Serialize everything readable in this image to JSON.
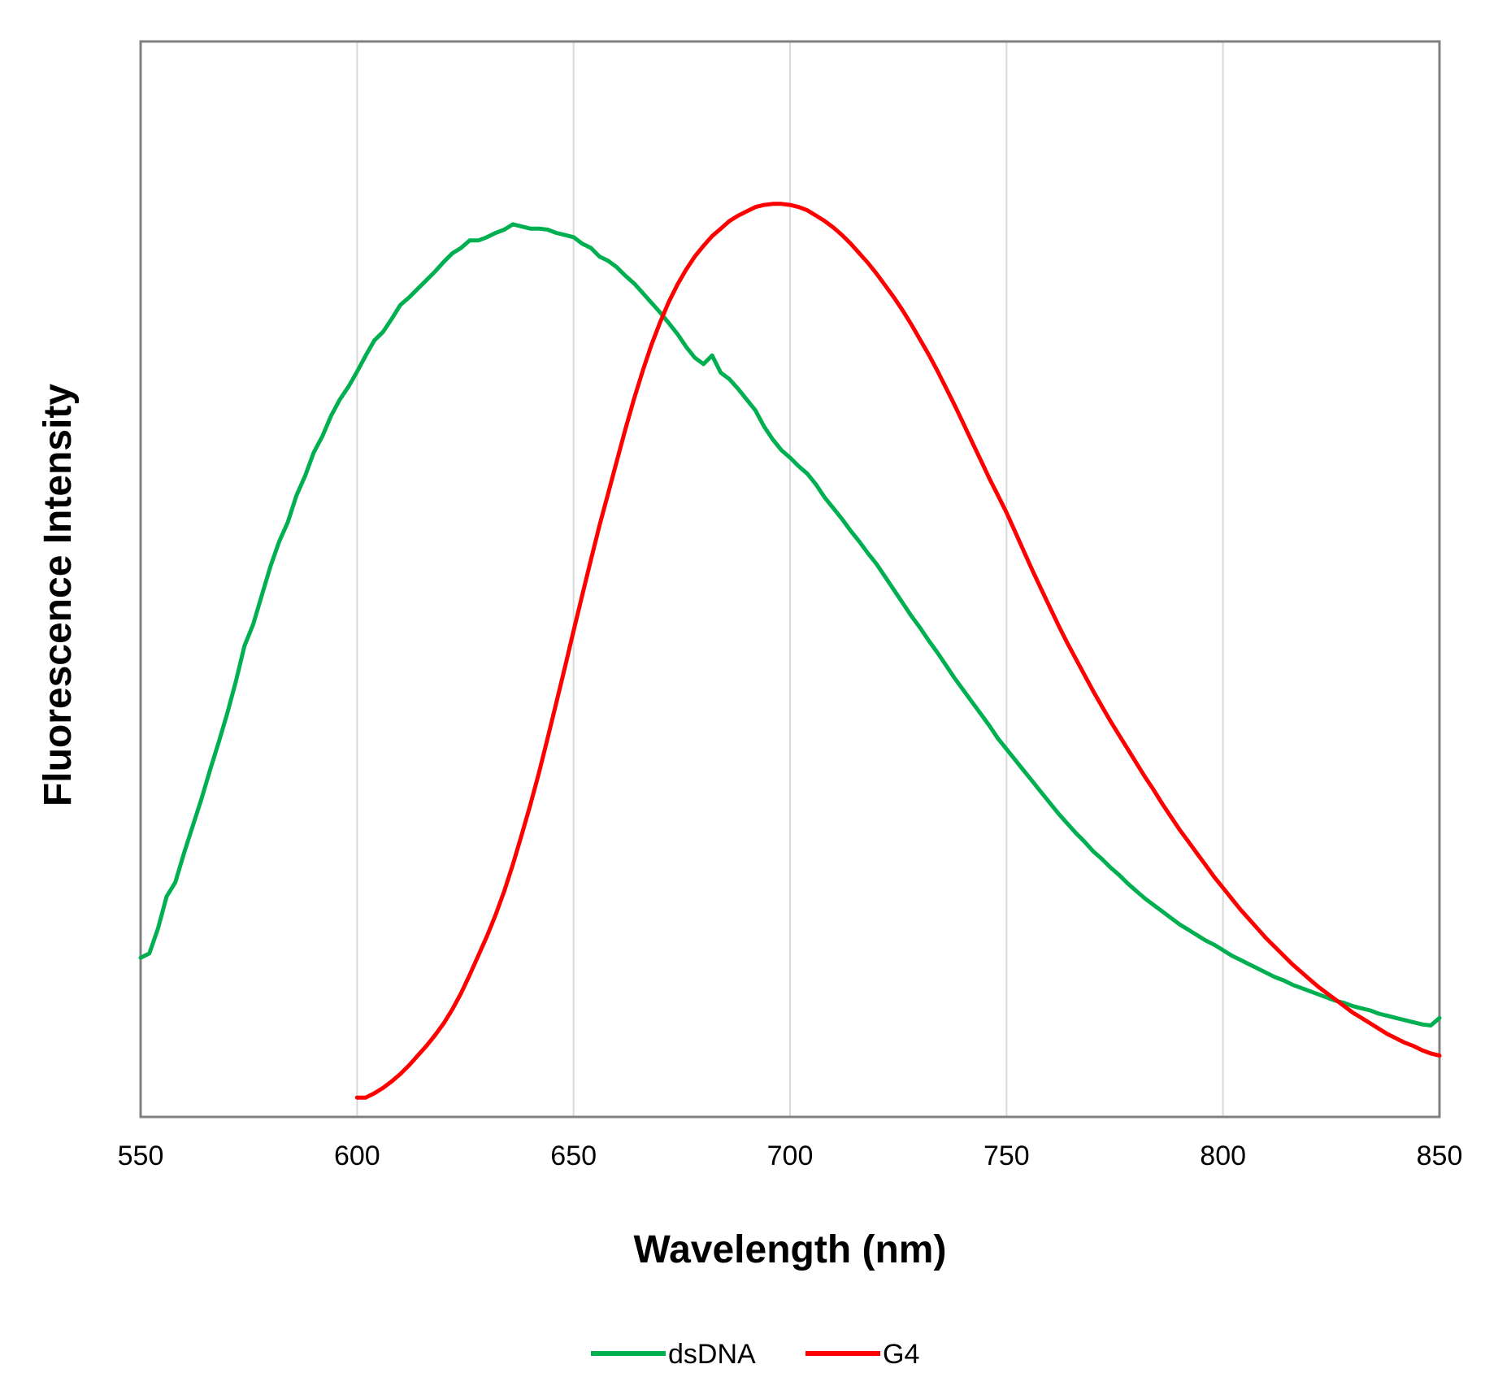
{
  "chart_data": {
    "type": "line",
    "title": "",
    "xlabel": "Wavelength (nm)",
    "ylabel": "Fluorescence Intensity",
    "xlim": [
      550,
      850
    ],
    "ylim": [
      0,
      1
    ],
    "x_ticks": [
      "550",
      "600",
      "650",
      "700",
      "750",
      "800",
      "850"
    ],
    "y_ticks_shown": false,
    "grid": "vertical",
    "legend_position": "bottom-center",
    "series": [
      {
        "name": "dsDNA",
        "color": "#00b050",
        "points": [
          [
            550,
            0.148
          ],
          [
            552,
            0.152
          ],
          [
            554,
            0.175
          ],
          [
            556,
            0.205
          ],
          [
            558,
            0.218
          ],
          [
            560,
            0.245
          ],
          [
            562,
            0.27
          ],
          [
            564,
            0.295
          ],
          [
            566,
            0.322
          ],
          [
            568,
            0.348
          ],
          [
            570,
            0.375
          ],
          [
            572,
            0.405
          ],
          [
            574,
            0.438
          ],
          [
            576,
            0.458
          ],
          [
            578,
            0.485
          ],
          [
            580,
            0.512
          ],
          [
            582,
            0.535
          ],
          [
            584,
            0.553
          ],
          [
            586,
            0.578
          ],
          [
            588,
            0.596
          ],
          [
            590,
            0.618
          ],
          [
            592,
            0.633
          ],
          [
            594,
            0.652
          ],
          [
            596,
            0.667
          ],
          [
            598,
            0.679
          ],
          [
            600,
            0.693
          ],
          [
            602,
            0.708
          ],
          [
            604,
            0.722
          ],
          [
            606,
            0.73
          ],
          [
            608,
            0.742
          ],
          [
            610,
            0.755
          ],
          [
            612,
            0.762
          ],
          [
            614,
            0.77
          ],
          [
            616,
            0.778
          ],
          [
            618,
            0.786
          ],
          [
            620,
            0.795
          ],
          [
            622,
            0.803
          ],
          [
            624,
            0.808
          ],
          [
            626,
            0.815
          ],
          [
            628,
            0.815
          ],
          [
            630,
            0.818
          ],
          [
            632,
            0.822
          ],
          [
            634,
            0.825
          ],
          [
            636,
            0.83
          ],
          [
            638,
            0.828
          ],
          [
            640,
            0.826
          ],
          [
            642,
            0.826
          ],
          [
            644,
            0.825
          ],
          [
            646,
            0.822
          ],
          [
            648,
            0.82
          ],
          [
            650,
            0.818
          ],
          [
            652,
            0.812
          ],
          [
            654,
            0.808
          ],
          [
            656,
            0.8
          ],
          [
            658,
            0.796
          ],
          [
            660,
            0.79
          ],
          [
            662,
            0.782
          ],
          [
            664,
            0.775
          ],
          [
            666,
            0.766
          ],
          [
            668,
            0.757
          ],
          [
            670,
            0.748
          ],
          [
            672,
            0.738
          ],
          [
            674,
            0.728
          ],
          [
            676,
            0.716
          ],
          [
            678,
            0.706
          ],
          [
            680,
            0.7
          ],
          [
            682,
            0.708
          ],
          [
            684,
            0.692
          ],
          [
            686,
            0.686
          ],
          [
            688,
            0.677
          ],
          [
            690,
            0.667
          ],
          [
            692,
            0.657
          ],
          [
            694,
            0.642
          ],
          [
            696,
            0.63
          ],
          [
            698,
            0.62
          ],
          [
            700,
            0.613
          ],
          [
            702,
            0.605
          ],
          [
            704,
            0.598
          ],
          [
            706,
            0.588
          ],
          [
            708,
            0.576
          ],
          [
            710,
            0.566
          ],
          [
            712,
            0.556
          ],
          [
            714,
            0.545
          ],
          [
            716,
            0.535
          ],
          [
            718,
            0.524
          ],
          [
            720,
            0.514
          ],
          [
            722,
            0.502
          ],
          [
            724,
            0.49
          ],
          [
            726,
            0.478
          ],
          [
            728,
            0.466
          ],
          [
            730,
            0.455
          ],
          [
            732,
            0.443
          ],
          [
            734,
            0.432
          ],
          [
            736,
            0.42
          ],
          [
            738,
            0.408
          ],
          [
            740,
            0.397
          ],
          [
            742,
            0.386
          ],
          [
            744,
            0.375
          ],
          [
            746,
            0.364
          ],
          [
            748,
            0.352
          ],
          [
            750,
            0.342
          ],
          [
            752,
            0.332
          ],
          [
            754,
            0.322
          ],
          [
            756,
            0.312
          ],
          [
            758,
            0.302
          ],
          [
            760,
            0.292
          ],
          [
            762,
            0.282
          ],
          [
            764,
            0.273
          ],
          [
            766,
            0.264
          ],
          [
            768,
            0.256
          ],
          [
            770,
            0.247
          ],
          [
            772,
            0.24
          ],
          [
            774,
            0.232
          ],
          [
            776,
            0.225
          ],
          [
            778,
            0.217
          ],
          [
            780,
            0.21
          ],
          [
            782,
            0.203
          ],
          [
            784,
            0.197
          ],
          [
            786,
            0.191
          ],
          [
            788,
            0.185
          ],
          [
            790,
            0.179
          ],
          [
            792,
            0.174
          ],
          [
            794,
            0.169
          ],
          [
            796,
            0.164
          ],
          [
            798,
            0.16
          ],
          [
            800,
            0.155
          ],
          [
            802,
            0.15
          ],
          [
            804,
            0.146
          ],
          [
            806,
            0.142
          ],
          [
            808,
            0.138
          ],
          [
            810,
            0.134
          ],
          [
            812,
            0.13
          ],
          [
            814,
            0.127
          ],
          [
            816,
            0.123
          ],
          [
            818,
            0.12
          ],
          [
            820,
            0.117
          ],
          [
            822,
            0.114
          ],
          [
            824,
            0.111
          ],
          [
            826,
            0.108
          ],
          [
            828,
            0.106
          ],
          [
            830,
            0.103
          ],
          [
            832,
            0.101
          ],
          [
            834,
            0.099
          ],
          [
            836,
            0.096
          ],
          [
            838,
            0.094
          ],
          [
            840,
            0.092
          ],
          [
            842,
            0.09
          ],
          [
            844,
            0.088
          ],
          [
            846,
            0.086
          ],
          [
            848,
            0.085
          ],
          [
            850,
            0.092
          ]
        ]
      },
      {
        "name": "G4",
        "color": "#ff0000",
        "points": [
          [
            600,
            0.018
          ],
          [
            602,
            0.018
          ],
          [
            604,
            0.022
          ],
          [
            606,
            0.027
          ],
          [
            608,
            0.033
          ],
          [
            610,
            0.04
          ],
          [
            612,
            0.048
          ],
          [
            614,
            0.057
          ],
          [
            616,
            0.066
          ],
          [
            618,
            0.076
          ],
          [
            620,
            0.087
          ],
          [
            622,
            0.1
          ],
          [
            624,
            0.115
          ],
          [
            626,
            0.132
          ],
          [
            628,
            0.15
          ],
          [
            630,
            0.168
          ],
          [
            632,
            0.188
          ],
          [
            634,
            0.21
          ],
          [
            636,
            0.235
          ],
          [
            638,
            0.262
          ],
          [
            640,
            0.29
          ],
          [
            642,
            0.32
          ],
          [
            644,
            0.352
          ],
          [
            646,
            0.385
          ],
          [
            648,
            0.418
          ],
          [
            650,
            0.452
          ],
          [
            652,
            0.485
          ],
          [
            654,
            0.518
          ],
          [
            656,
            0.55
          ],
          [
            658,
            0.58
          ],
          [
            660,
            0.61
          ],
          [
            662,
            0.64
          ],
          [
            664,
            0.668
          ],
          [
            666,
            0.694
          ],
          [
            668,
            0.718
          ],
          [
            670,
            0.739
          ],
          [
            672,
            0.758
          ],
          [
            674,
            0.774
          ],
          [
            676,
            0.788
          ],
          [
            678,
            0.8
          ],
          [
            680,
            0.81
          ],
          [
            682,
            0.819
          ],
          [
            684,
            0.826
          ],
          [
            686,
            0.833
          ],
          [
            688,
            0.838
          ],
          [
            690,
            0.842
          ],
          [
            692,
            0.846
          ],
          [
            694,
            0.848
          ],
          [
            696,
            0.849
          ],
          [
            698,
            0.849
          ],
          [
            700,
            0.848
          ],
          [
            702,
            0.846
          ],
          [
            704,
            0.843
          ],
          [
            706,
            0.838
          ],
          [
            708,
            0.833
          ],
          [
            710,
            0.827
          ],
          [
            712,
            0.82
          ],
          [
            714,
            0.812
          ],
          [
            716,
            0.803
          ],
          [
            718,
            0.794
          ],
          [
            720,
            0.784
          ],
          [
            722,
            0.773
          ],
          [
            724,
            0.762
          ],
          [
            726,
            0.75
          ],
          [
            728,
            0.737
          ],
          [
            730,
            0.723
          ],
          [
            732,
            0.709
          ],
          [
            734,
            0.694
          ],
          [
            736,
            0.678
          ],
          [
            738,
            0.662
          ],
          [
            740,
            0.645
          ],
          [
            742,
            0.628
          ],
          [
            744,
            0.611
          ],
          [
            746,
            0.594
          ],
          [
            748,
            0.578
          ],
          [
            750,
            0.562
          ],
          [
            752,
            0.544
          ],
          [
            754,
            0.526
          ],
          [
            756,
            0.508
          ],
          [
            758,
            0.491
          ],
          [
            760,
            0.474
          ],
          [
            762,
            0.457
          ],
          [
            764,
            0.441
          ],
          [
            766,
            0.426
          ],
          [
            768,
            0.411
          ],
          [
            770,
            0.396
          ],
          [
            772,
            0.382
          ],
          [
            774,
            0.368
          ],
          [
            776,
            0.355
          ],
          [
            778,
            0.342
          ],
          [
            780,
            0.329
          ],
          [
            782,
            0.316
          ],
          [
            784,
            0.304
          ],
          [
            786,
            0.291
          ],
          [
            788,
            0.279
          ],
          [
            790,
            0.267
          ],
          [
            792,
            0.256
          ],
          [
            794,
            0.245
          ],
          [
            796,
            0.234
          ],
          [
            798,
            0.223
          ],
          [
            800,
            0.213
          ],
          [
            802,
            0.203
          ],
          [
            804,
            0.193
          ],
          [
            806,
            0.184
          ],
          [
            808,
            0.175
          ],
          [
            810,
            0.166
          ],
          [
            812,
            0.158
          ],
          [
            814,
            0.15
          ],
          [
            816,
            0.142
          ],
          [
            818,
            0.135
          ],
          [
            820,
            0.128
          ],
          [
            822,
            0.121
          ],
          [
            824,
            0.115
          ],
          [
            826,
            0.109
          ],
          [
            828,
            0.103
          ],
          [
            830,
            0.097
          ],
          [
            832,
            0.092
          ],
          [
            834,
            0.087
          ],
          [
            836,
            0.082
          ],
          [
            838,
            0.077
          ],
          [
            840,
            0.073
          ],
          [
            842,
            0.069
          ],
          [
            844,
            0.066
          ],
          [
            846,
            0.062
          ],
          [
            848,
            0.059
          ],
          [
            850,
            0.057
          ]
        ]
      }
    ]
  }
}
